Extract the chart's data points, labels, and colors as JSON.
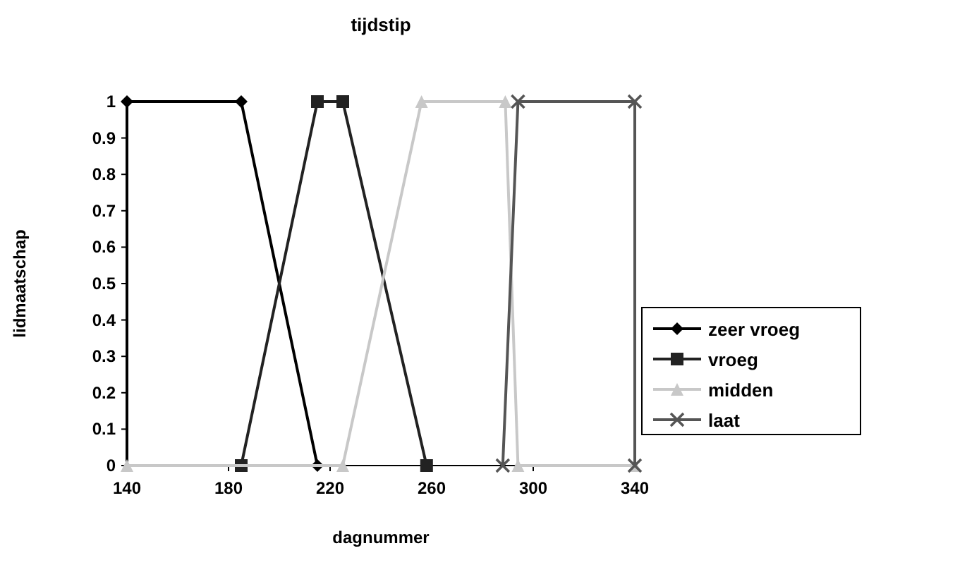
{
  "chart_data": {
    "type": "line",
    "title": "tijdstip",
    "xlabel": "dagnummer",
    "ylabel": "lidmaatschap",
    "xlim": [
      140,
      340
    ],
    "xticks": [
      140,
      180,
      220,
      260,
      300,
      340
    ],
    "ylim": [
      0,
      1
    ],
    "yticks": [
      0,
      0.1,
      0.2,
      0.3,
      0.4,
      0.5,
      0.6,
      0.7,
      0.8,
      0.9,
      1
    ],
    "grid": false,
    "legend": "right",
    "series": [
      {
        "name": "zeer vroeg",
        "color": "#000000",
        "marker": "diamond",
        "x": [
          140,
          185,
          215
        ],
        "values": [
          1,
          1,
          0
        ]
      },
      {
        "name": "vroeg",
        "color": "#222222",
        "marker": "square",
        "x": [
          185,
          215,
          225,
          258
        ],
        "values": [
          0,
          1,
          1,
          0
        ]
      },
      {
        "name": "midden",
        "color": "#c8c8c8",
        "marker": "triangle",
        "x": [
          140,
          225,
          256,
          289,
          294,
          340
        ],
        "values": [
          0,
          0,
          1,
          1,
          0,
          0
        ]
      },
      {
        "name": "laat",
        "color": "#555555",
        "marker": "cross",
        "x": [
          288,
          294,
          340,
          340
        ],
        "values": [
          0,
          1,
          1,
          0
        ]
      }
    ]
  }
}
